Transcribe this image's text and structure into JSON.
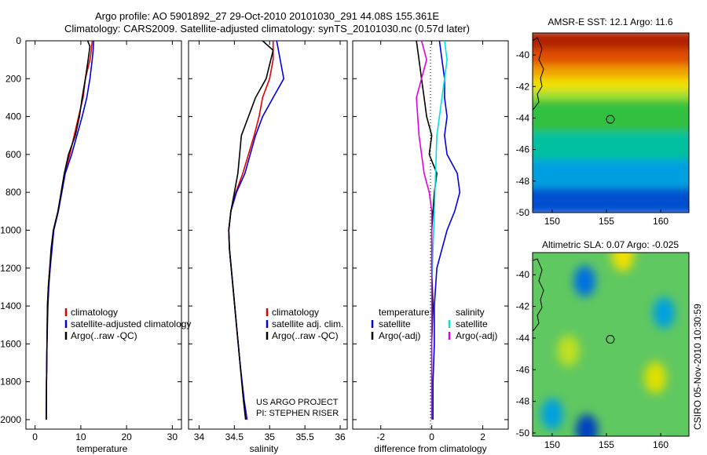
{
  "header": {
    "title_line1": "Argo profile: AO 5901892_27 29-Oct-2010 20101030_291 44.08S 155.361E",
    "title_line2": "Climatology: CARS2009. Satellite-adjusted climatology: synTS_20101030.nc (0.57d later)"
  },
  "credit": {
    "line1": "US ARGO PROJECT",
    "line2": "PI: STEPHEN RISER",
    "side": "CSIRO 05-Nov-2010 10:30:59"
  },
  "colors": {
    "climatology": "#e00000",
    "satellite": "#0000e0",
    "argo": "#000000",
    "salinity_satellite": "#00e0e0",
    "salinity_argo": "#e000e0"
  },
  "chart_data": [
    {
      "type": "line",
      "xlabel": "temperature",
      "xlim": [
        -2,
        32
      ],
      "ylim": [
        0,
        2050
      ],
      "y_reversed": true,
      "xticks": [
        "0",
        "10",
        "20",
        "30"
      ],
      "yticks": [
        "0",
        "200",
        "400",
        "600",
        "800",
        "1000",
        "1200",
        "1400",
        "1600",
        "1800",
        "2000"
      ],
      "legend": [
        "climatology",
        "satellite-adjusted climatology",
        "Argo(..raw -QC)"
      ],
      "series": [
        {
          "name": "climatology",
          "color": "#e00000",
          "x": [
            12.5,
            12.3,
            12.0,
            11.0,
            10.5,
            9.5,
            7.6,
            6.4,
            5.0,
            4.0,
            3.6,
            3.2,
            2.9,
            2.7,
            2.6,
            2.5,
            2.45
          ],
          "y": [
            0,
            50,
            100,
            200,
            300,
            400,
            600,
            700,
            900,
            1000,
            1100,
            1200,
            1300,
            1400,
            1600,
            1800,
            2000
          ]
        },
        {
          "name": "satellite-adjusted climatology",
          "color": "#0000e0",
          "x": [
            12.8,
            12.7,
            12.5,
            12.0,
            11.3,
            10.3,
            8.0,
            6.6,
            5.1,
            4.1,
            3.7,
            3.3,
            3.0,
            2.8,
            2.6,
            2.5,
            2.45
          ],
          "y": [
            0,
            50,
            100,
            200,
            300,
            400,
            600,
            700,
            900,
            1000,
            1100,
            1200,
            1300,
            1400,
            1600,
            1800,
            2000
          ]
        },
        {
          "name": "Argo(..raw -QC)",
          "color": "#000000",
          "x": [
            11.5,
            12.0,
            11.6,
            11.0,
            10.3,
            9.7,
            8.8,
            7.3,
            6.4,
            5.0,
            4.0,
            3.5,
            3.2,
            2.9,
            2.7,
            2.6,
            2.5,
            2.45
          ],
          "y": [
            0,
            30,
            100,
            200,
            300,
            400,
            500,
            600,
            700,
            900,
            1000,
            1100,
            1200,
            1300,
            1400,
            1600,
            1800,
            2000
          ]
        }
      ]
    },
    {
      "type": "line",
      "xlabel": "salinity",
      "xlim": [
        33.85,
        36.1
      ],
      "ylim": [
        0,
        2050
      ],
      "y_reversed": true,
      "xticks": [
        "34",
        "34.5",
        "35",
        "35.5",
        "36"
      ],
      "legend": [
        "climatology",
        "satellite adj. clim.",
        "Argo(..raw -QC)"
      ],
      "series": [
        {
          "name": "climatology",
          "color": "#e00000",
          "x": [
            35.05,
            35.05,
            35.0,
            34.9,
            34.85,
            34.78,
            34.62,
            34.52,
            34.45,
            34.42,
            34.43,
            34.48,
            34.53,
            34.58,
            34.63,
            34.66
          ],
          "y": [
            0,
            100,
            200,
            300,
            400,
            500,
            700,
            800,
            900,
            1000,
            1100,
            1300,
            1500,
            1700,
            1900,
            2000
          ]
        },
        {
          "name": "satellite adj. clim.",
          "color": "#0000e0",
          "x": [
            35.1,
            35.15,
            35.2,
            35.05,
            34.9,
            34.8,
            34.65,
            34.53,
            34.45,
            34.42,
            34.43,
            34.48,
            34.53,
            34.58,
            34.64,
            34.68
          ],
          "y": [
            0,
            100,
            200,
            300,
            400,
            500,
            700,
            800,
            900,
            1000,
            1100,
            1300,
            1500,
            1700,
            1900,
            2000
          ]
        },
        {
          "name": "Argo(..raw -QC)",
          "color": "#000000",
          "x": [
            34.9,
            35.05,
            34.95,
            34.8,
            34.7,
            34.6,
            34.55,
            34.5,
            34.45,
            34.42,
            34.43,
            34.48,
            34.53,
            34.58,
            34.63,
            34.66
          ],
          "y": [
            0,
            50,
            200,
            300,
            400,
            500,
            700,
            800,
            900,
            1000,
            1100,
            1300,
            1500,
            1700,
            1900,
            2000
          ]
        }
      ]
    },
    {
      "type": "line",
      "xlabel": "difference from climatology",
      "xlim": [
        -3.1,
        3.0
      ],
      "ylim": [
        0,
        2050
      ],
      "y_reversed": true,
      "xticks": [
        "-2",
        "0",
        "2"
      ],
      "legend_groups": [
        {
          "title": "temperature",
          "entries": [
            "satellite",
            "Argo(-adj)"
          ]
        },
        {
          "title": "salinity",
          "entries": [
            "satellite",
            "Argo(-adj)"
          ]
        }
      ],
      "series": [
        {
          "name": "satellite",
          "group": "temperature",
          "color": "#0000e0",
          "x": [
            0.3,
            0.4,
            0.5,
            0.5,
            0.6,
            0.5,
            0.6,
            1.0,
            1.1,
            0.9,
            0.6,
            0.4,
            0.2,
            0.1,
            0.1,
            0.05,
            0.05,
            0.05
          ],
          "y": [
            0,
            100,
            200,
            300,
            400,
            500,
            600,
            700,
            800,
            900,
            1000,
            1100,
            1200,
            1400,
            1600,
            1800,
            1900,
            2000
          ]
        },
        {
          "name": "Argo(-adj)",
          "group": "temperature",
          "color": "#000000",
          "x": [
            -0.6,
            -0.5,
            -0.4,
            -0.3,
            -0.2,
            0.0,
            -0.1,
            0.2,
            0.1,
            0.05,
            0.0,
            0.0,
            0.05,
            0.0,
            0.0,
            0.0,
            0.0
          ],
          "y": [
            0,
            100,
            200,
            300,
            400,
            500,
            600,
            700,
            800,
            900,
            1000,
            1200,
            1400,
            1600,
            1800,
            1900,
            2000
          ]
        },
        {
          "name": "satellite",
          "group": "salinity",
          "color": "#00e0e0",
          "x": [
            0.5,
            0.6,
            0.5,
            0.4,
            0.3,
            0.2,
            0.15,
            0.1,
            0.05,
            0.0,
            0.0,
            0.0,
            0.0,
            0.0
          ],
          "y": [
            0,
            100,
            200,
            300,
            400,
            500,
            700,
            900,
            1100,
            1300,
            1500,
            1700,
            1900,
            2000
          ]
        },
        {
          "name": "Argo(-adj)",
          "group": "salinity",
          "color": "#e000e0",
          "x": [
            -0.4,
            -0.2,
            -0.4,
            -0.6,
            -0.5,
            -0.3,
            -0.1,
            0.0,
            0.0,
            0.0,
            0.0,
            0.0
          ],
          "y": [
            0,
            100,
            200,
            300,
            500,
            700,
            800,
            900,
            1100,
            1400,
            1700,
            2000
          ]
        }
      ]
    },
    {
      "type": "heatmap",
      "title": "AMSR-E SST: 12.1 Argo: 11.6",
      "xlim": [
        148.2,
        162.6
      ],
      "ylim": [
        -50,
        -38.6
      ],
      "xticks": [
        "150",
        "155",
        "160"
      ],
      "yticks": [
        "-40",
        "-42",
        "-44",
        "-46",
        "-48",
        "-50"
      ],
      "marker": {
        "lon": 155.36,
        "lat": -44.08
      },
      "bands": [
        {
          "lat_from": -38.6,
          "lat_to": -39.8,
          "color": "#b02000"
        },
        {
          "lat_from": -39.8,
          "lat_to": -40.8,
          "color": "#e05000"
        },
        {
          "lat_from": -40.8,
          "lat_to": -41.6,
          "color": "#f0a000"
        },
        {
          "lat_from": -41.6,
          "lat_to": -42.4,
          "color": "#f0e000"
        },
        {
          "lat_from": -42.4,
          "lat_to": -43.0,
          "color": "#a0e030"
        },
        {
          "lat_from": -43.0,
          "lat_to": -45.0,
          "color": "#30c040"
        },
        {
          "lat_from": -45.0,
          "lat_to": -46.8,
          "color": "#00c0a0"
        },
        {
          "lat_from": -46.8,
          "lat_to": -48.6,
          "color": "#00a0e0"
        },
        {
          "lat_from": -48.6,
          "lat_to": -50.0,
          "color": "#0050d0"
        }
      ]
    },
    {
      "type": "heatmap",
      "title": "Altimetric SLA: 0.07 Argo: -0.025",
      "xlim": [
        148.2,
        162.6
      ],
      "ylim": [
        -50.2,
        -38.6
      ],
      "xticks": [
        "150",
        "155",
        "160"
      ],
      "yticks": [
        "-40",
        "-42",
        "-44",
        "-46",
        "-48",
        "-50"
      ],
      "marker": {
        "lon": 155.36,
        "lat": -44.08
      },
      "background_color": "#60c860",
      "blobs": [
        {
          "lon": 153.0,
          "lat": -40.4,
          "color": "#0070e0"
        },
        {
          "lon": 160.3,
          "lat": -42.4,
          "color": "#00a0e0"
        },
        {
          "lon": 153.2,
          "lat": -49.8,
          "color": "#0040c0"
        },
        {
          "lon": 150.0,
          "lat": -48.8,
          "color": "#00a0e0"
        },
        {
          "lon": 156.5,
          "lat": -38.8,
          "color": "#f0e000"
        },
        {
          "lon": 151.5,
          "lat": -44.8,
          "color": "#c0e020"
        },
        {
          "lon": 159.5,
          "lat": -46.5,
          "color": "#e0e000"
        }
      ]
    }
  ]
}
